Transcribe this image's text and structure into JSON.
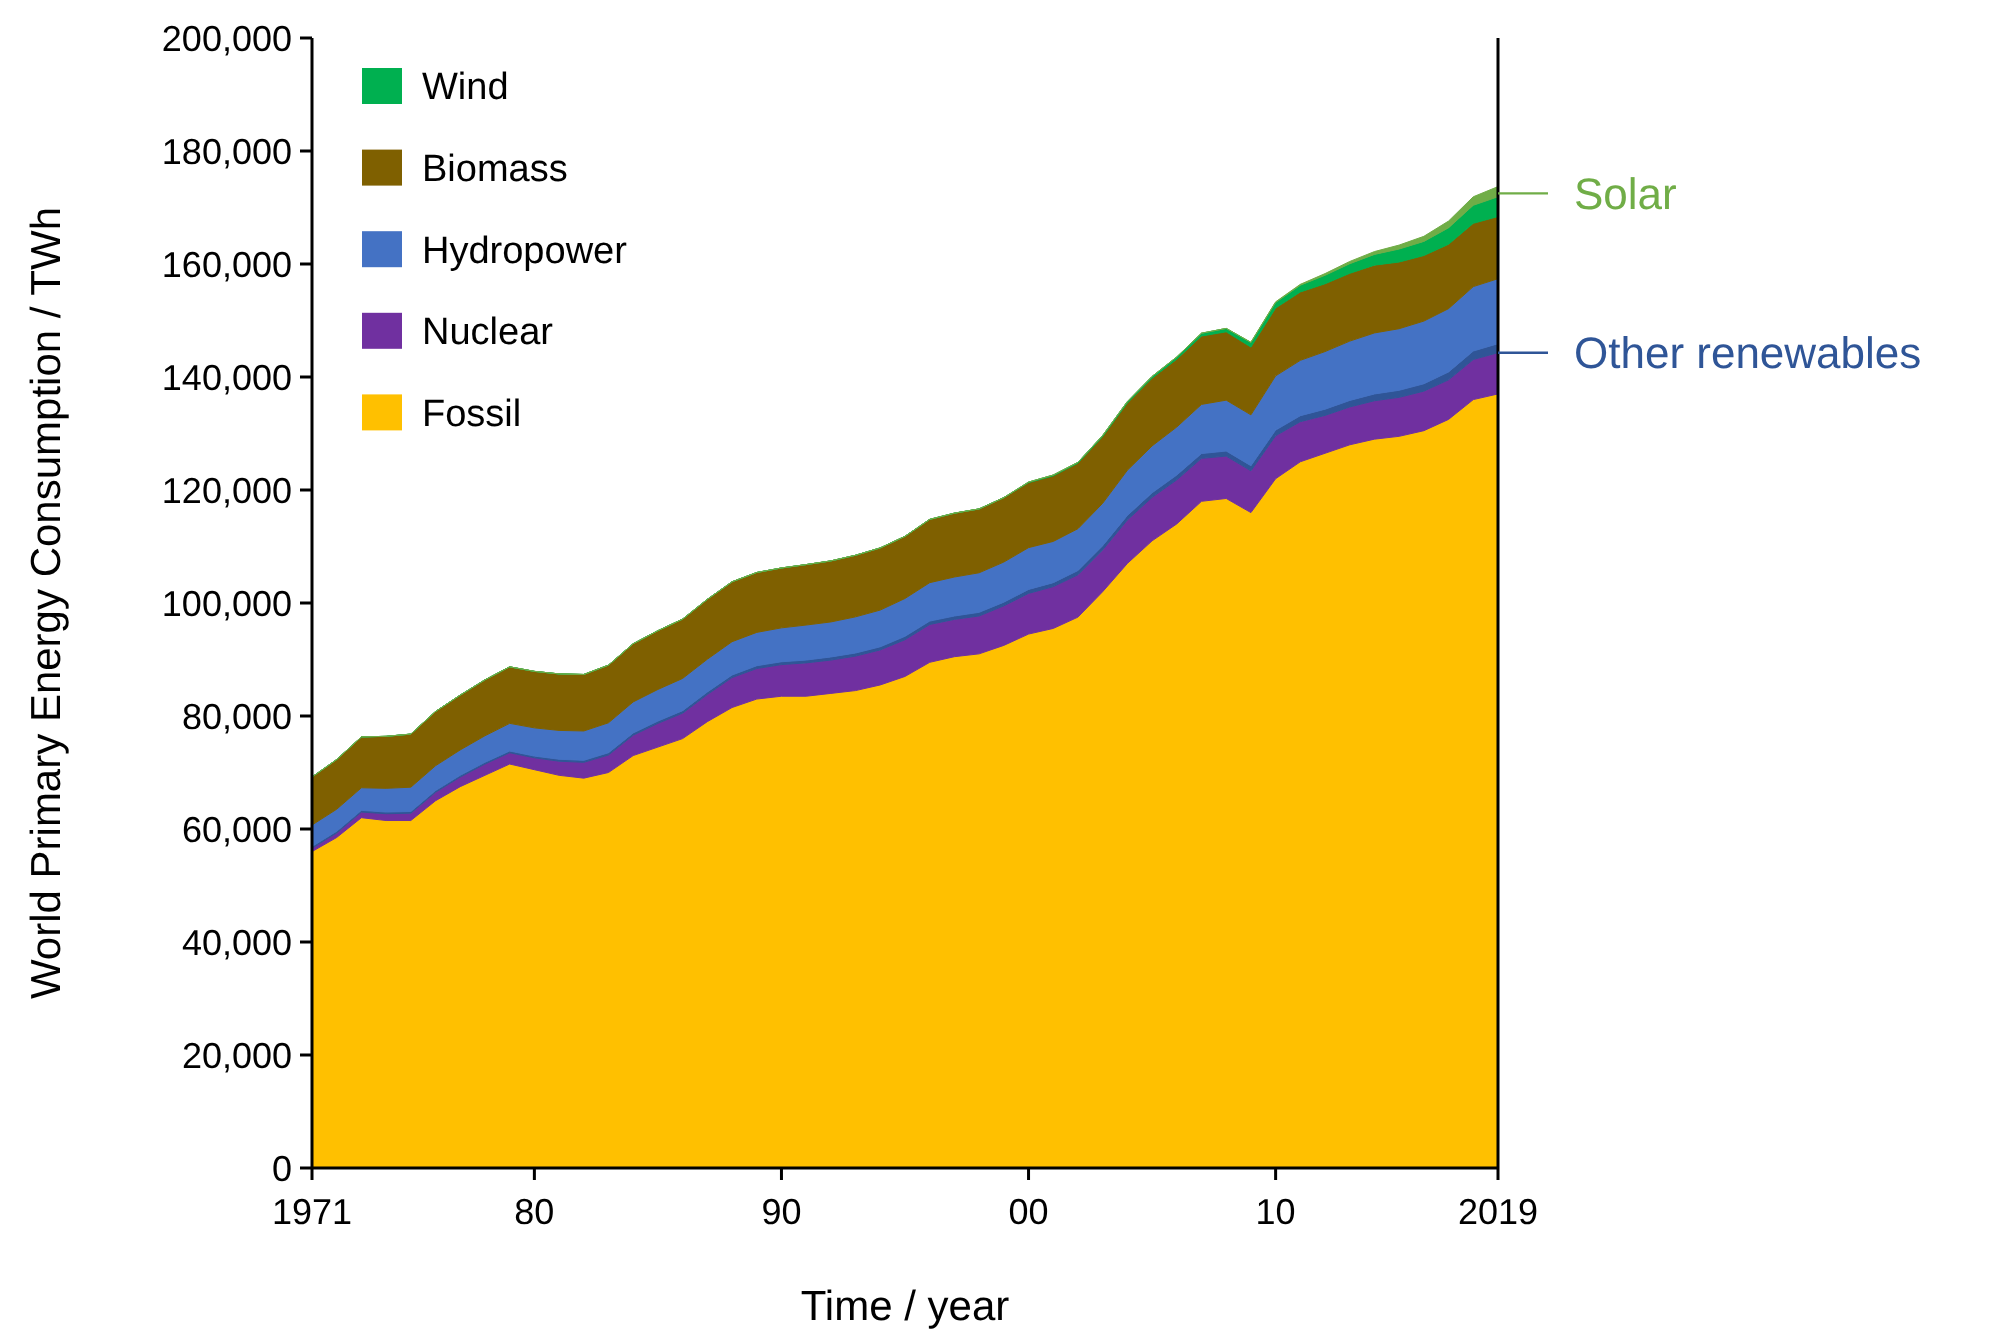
{
  "chart_data": {
    "type": "area",
    "stacked": true,
    "xlabel": "Time / year",
    "ylabel": "World Primary Energy Consumption / TWh",
    "x": [
      1971,
      1972,
      1973,
      1974,
      1975,
      1976,
      1977,
      1978,
      1979,
      1980,
      1981,
      1982,
      1983,
      1984,
      1985,
      1986,
      1987,
      1988,
      1989,
      1990,
      1991,
      1992,
      1993,
      1994,
      1995,
      1996,
      1997,
      1998,
      1999,
      2000,
      2001,
      2002,
      2003,
      2004,
      2005,
      2006,
      2007,
      2008,
      2009,
      2010,
      2011,
      2012,
      2013,
      2014,
      2015,
      2016,
      2017,
      2018,
      2019
    ],
    "xlim": [
      1971,
      2019
    ],
    "xticks": [
      1971,
      {
        "value": 1980,
        "label": "80"
      },
      {
        "value": 1990,
        "label": "90"
      },
      {
        "value": 2000,
        "label": "00"
      },
      {
        "value": 2010,
        "label": "10"
      },
      2019
    ],
    "ylim": [
      0,
      200000
    ],
    "yticks": [
      {
        "value": 0,
        "label": "0"
      },
      {
        "value": 20000,
        "label": "20,000"
      },
      {
        "value": 40000,
        "label": "40,000"
      },
      {
        "value": 60000,
        "label": "60,000"
      },
      {
        "value": 80000,
        "label": "80,000"
      },
      {
        "value": 100000,
        "label": "100,000"
      },
      {
        "value": 120000,
        "label": "120,000"
      },
      {
        "value": 140000,
        "label": "140,000"
      },
      {
        "value": 160000,
        "label": "160,000"
      },
      {
        "value": 180000,
        "label": "180,000"
      },
      {
        "value": 200000,
        "label": "200,000"
      }
    ],
    "grid": false,
    "legend": "top left",
    "series": [
      {
        "name": "Fossil",
        "color": "#ffc000",
        "values": [
          56000,
          58500,
          62000,
          61500,
          61500,
          65000,
          67500,
          69500,
          71500,
          70500,
          69500,
          69000,
          70000,
          73000,
          74500,
          76000,
          79000,
          81500,
          83000,
          83500,
          83500,
          84000,
          84500,
          85500,
          87000,
          89500,
          90500,
          91000,
          92500,
          94500,
          95500,
          97500,
          102000,
          107000,
          111000,
          114000,
          118000,
          118500,
          116000,
          122000,
          125000,
          126500,
          128000,
          129000,
          129500,
          130500,
          132500,
          136000,
          137000
        ]
      },
      {
        "name": "Nuclear",
        "color": "#7030a0",
        "values": [
          600,
          800,
          1000,
          1200,
          1300,
          1500,
          1700,
          2000,
          2000,
          2100,
          2500,
          2800,
          3100,
          3600,
          4200,
          4500,
          4800,
          5300,
          5400,
          5600,
          5900,
          5900,
          6100,
          6200,
          6500,
          6700,
          6600,
          6700,
          7000,
          7200,
          7400,
          7500,
          7400,
          7700,
          7700,
          7800,
          7600,
          7500,
          7400,
          7600,
          7100,
          6700,
          6700,
          6800,
          6900,
          7000,
          7000,
          7100,
          7300
        ]
      },
      {
        "color": "#2f5597",
        "values": [
          300,
          300,
          300,
          300,
          300,
          300,
          300,
          300,
          300,
          300,
          350,
          350,
          400,
          400,
          400,
          450,
          450,
          450,
          500,
          500,
          500,
          550,
          550,
          550,
          600,
          600,
          600,
          650,
          650,
          700,
          700,
          750,
          750,
          800,
          800,
          850,
          850,
          900,
          900,
          1000,
          1050,
          1100,
          1150,
          1200,
          1250,
          1300,
          1400,
          1500,
          1600
        ]
      },
      {
        "name": "Hydropower",
        "color": "#4472c4",
        "values": [
          3800,
          3900,
          4000,
          4200,
          4300,
          4400,
          4500,
          4700,
          4900,
          5000,
          5100,
          5200,
          5300,
          5500,
          5600,
          5700,
          5800,
          5900,
          5900,
          6000,
          6200,
          6200,
          6400,
          6500,
          6700,
          6800,
          6900,
          7000,
          7100,
          7400,
          7300,
          7400,
          7500,
          8000,
          8300,
          8500,
          8700,
          9000,
          9000,
          9600,
          9800,
          10200,
          10500,
          10800,
          10900,
          11100,
          11200,
          11400,
          11500
        ]
      },
      {
        "name": "Biomass",
        "color": "#7f6000",
        "values": [
          8500,
          8800,
          9000,
          9200,
          9400,
          9600,
          9700,
          9900,
          10000,
          10000,
          10000,
          10000,
          10200,
          10300,
          10400,
          10500,
          10600,
          10600,
          10600,
          10600,
          10700,
          10800,
          10900,
          11000,
          11000,
          11200,
          11300,
          11300,
          11400,
          11500,
          11600,
          11600,
          11800,
          11900,
          12000,
          12000,
          12100,
          12100,
          12000,
          12000,
          12100,
          12000,
          12000,
          12000,
          11800,
          11600,
          11400,
          11200,
          11000
        ]
      },
      {
        "name": "Wind",
        "color": "#00b050",
        "values": [
          0,
          0,
          0,
          0,
          0,
          0,
          0,
          0,
          0,
          0,
          0,
          0,
          0,
          0,
          0,
          0,
          0,
          0,
          0,
          0,
          0,
          0,
          0,
          0,
          0,
          0,
          0,
          0,
          0,
          100,
          150,
          150,
          200,
          250,
          300,
          400,
          500,
          600,
          800,
          1000,
          1200,
          1500,
          1700,
          1900,
          2300,
          2500,
          2900,
          3200,
          3500
        ]
      },
      {
        "color": "#70ad47",
        "values": [
          0,
          0,
          0,
          0,
          0,
          0,
          0,
          0,
          0,
          0,
          0,
          0,
          0,
          0,
          0,
          0,
          0,
          0,
          0,
          0,
          0,
          0,
          0,
          0,
          0,
          0,
          0,
          0,
          0,
          0,
          0,
          0,
          0,
          0,
          0,
          0,
          0,
          0,
          50,
          100,
          150,
          300,
          400,
          500,
          700,
          900,
          1200,
          1500,
          1800
        ]
      }
    ],
    "annotations": [
      {
        "text": "Solar",
        "x": 2019,
        "y": 172500
      },
      {
        "text": "Other renewables",
        "x": 2019,
        "y": 144300
      }
    ]
  }
}
